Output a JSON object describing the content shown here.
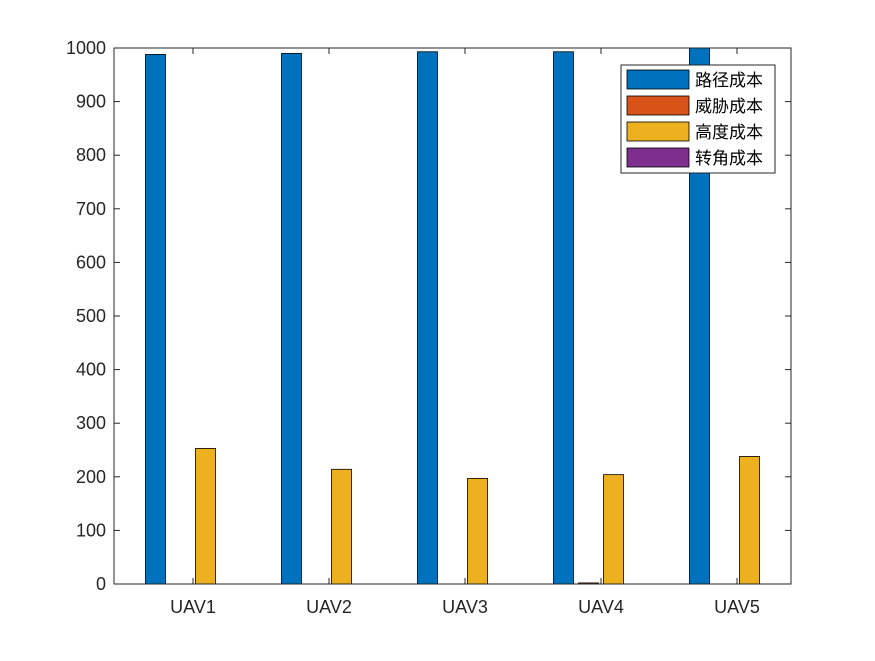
{
  "chart_data": {
    "type": "bar",
    "title": "",
    "xlabel": "",
    "ylabel": "",
    "categories": [
      "UAV1",
      "UAV2",
      "UAV3",
      "UAV4",
      "UAV5"
    ],
    "ylim": [
      0,
      1000
    ],
    "yticks": [
      "0",
      "100",
      "200",
      "300",
      "400",
      "500",
      "600",
      "700",
      "800",
      "900",
      "1000"
    ],
    "grid": false,
    "legend_position": "top-right",
    "series": [
      {
        "name": "路径成本",
        "color": "#0072BD",
        "values": [
          988,
          990,
          993,
          993,
          1000
        ]
      },
      {
        "name": "威胁成本",
        "color": "#D95319",
        "values": [
          0,
          0,
          0,
          2,
          0
        ]
      },
      {
        "name": "高度成本",
        "color": "#EDB120",
        "values": [
          253,
          214,
          197,
          204,
          238
        ]
      },
      {
        "name": "转角成本",
        "color": "#7E2F8E",
        "values": [
          0,
          0,
          0,
          0,
          0
        ]
      }
    ]
  }
}
